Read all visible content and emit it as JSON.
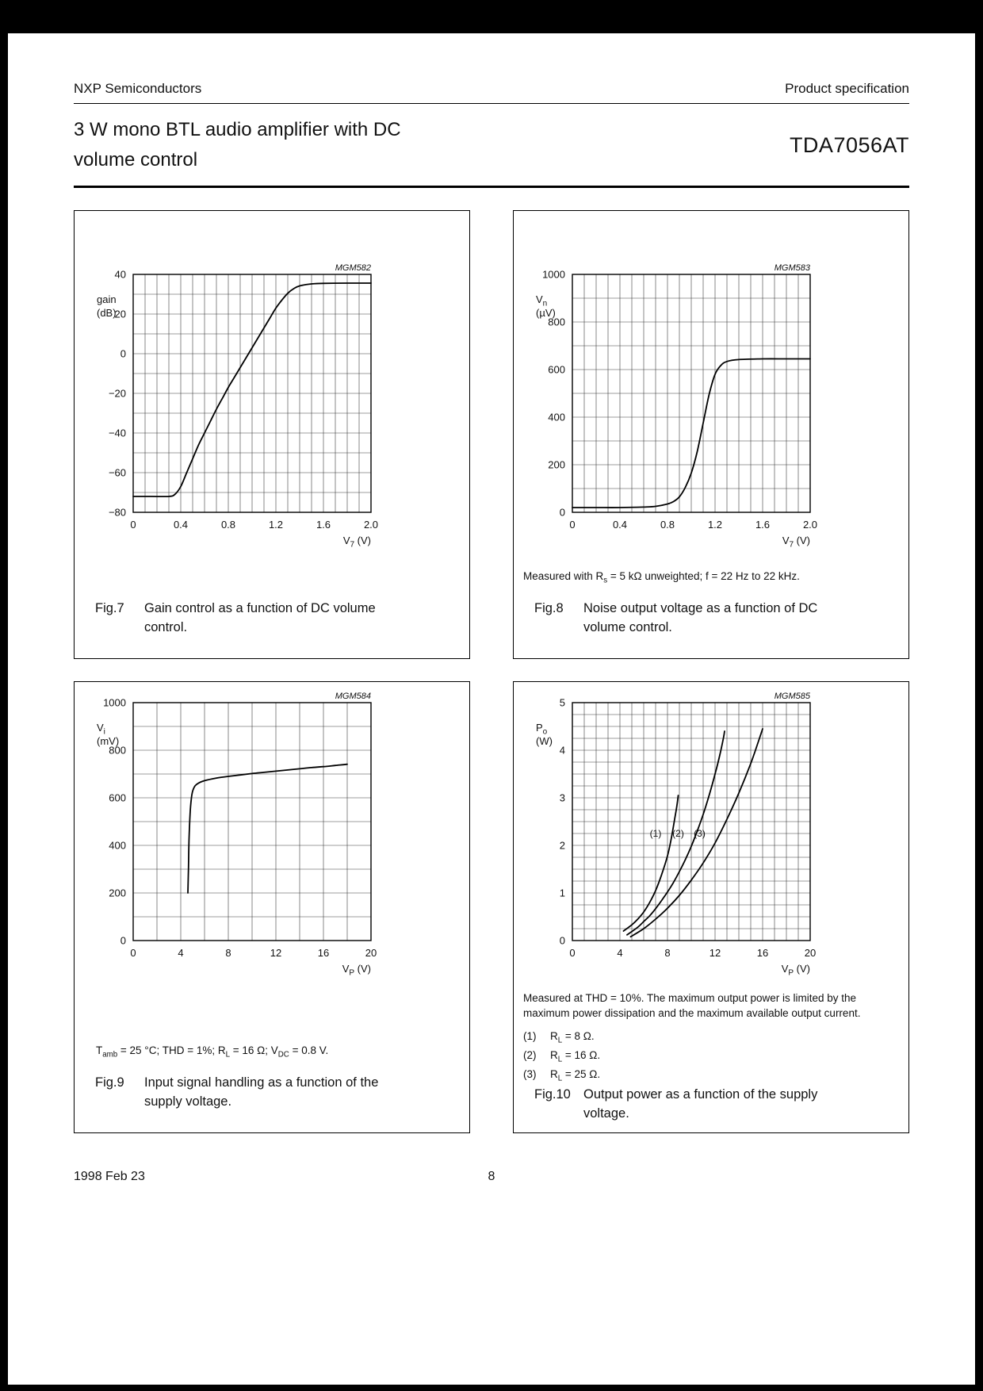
{
  "page": {
    "header_left": "NXP Semiconductors",
    "header_right": "Product specification",
    "title_line1": "3 W mono BTL audio amplifier with DC",
    "title_line2": "volume control",
    "part_number": "TDA7056AT",
    "footer_date": "1998 Feb 23",
    "footer_page_number": "8"
  },
  "figures": [
    {
      "label": "Fig.7",
      "caption": "Gain control as a function of DC volume control."
    },
    {
      "label": "Fig.8",
      "caption": "Noise output voltage as a function of DC volume control.",
      "note": [
        [
          "t",
          "Measured with R"
        ],
        [
          "sub",
          "s"
        ],
        [
          "t",
          " = 5 kΩ unweighted; f = 22 Hz to 22 kHz."
        ]
      ]
    },
    {
      "label": "Fig.9",
      "caption": "Input signal handling as a function of the supply voltage.",
      "note": [
        [
          "t",
          "T"
        ],
        [
          "sub",
          "amb"
        ],
        [
          "t",
          " = 25 °C; THD = 1%; R"
        ],
        [
          "sub",
          "L"
        ],
        [
          "t",
          " = 16 Ω; V"
        ],
        [
          "sub",
          "DC"
        ],
        [
          "t",
          " = 0.8 V."
        ]
      ]
    },
    {
      "label": "Fig.10",
      "caption": "Output power as a function of the supply voltage.",
      "note": [
        [
          "t",
          "Measured at THD = 10%. The maximum output power is limited by the maximum power dissipation and the maximum available output current."
        ]
      ],
      "legend": [
        {
          "num": "(1)",
          "text": [
            [
              "t",
              "R"
            ],
            [
              "sub",
              "L"
            ],
            [
              "t",
              " = 8 Ω."
            ]
          ]
        },
        {
          "num": "(2)",
          "text": [
            [
              "t",
              "R"
            ],
            [
              "sub",
              "L"
            ],
            [
              "t",
              " = 16 Ω."
            ]
          ]
        },
        {
          "num": "(3)",
          "text": [
            [
              "t",
              "R"
            ],
            [
              "sub",
              "L"
            ],
            [
              "t",
              " = 25 Ω."
            ]
          ]
        }
      ]
    }
  ],
  "chart_data": [
    {
      "type": "line",
      "id": "MGM582",
      "xlim": [
        0,
        2.0
      ],
      "xminor": 0.1,
      "xticks": [
        0,
        0.4,
        0.8,
        1.2,
        1.6,
        2.0
      ],
      "xtick_labels": [
        "0",
        "0.4",
        "0.8",
        "1.2",
        "1.6",
        "2.0"
      ],
      "ylim": [
        -80,
        40
      ],
      "yminor": 10,
      "yticks": [
        -80,
        -60,
        -40,
        -20,
        0,
        20,
        40
      ],
      "ytick_labels": [
        "−80",
        "−60",
        "−40",
        "−20",
        "0",
        "20",
        "40"
      ],
      "ylabel_lines": [
        [
          [
            "t",
            "gain"
          ]
        ],
        [
          [
            "t",
            "(dB)"
          ]
        ]
      ],
      "xlabel": [
        [
          "t",
          "V"
        ],
        [
          "sub",
          "7"
        ],
        [
          "t",
          " (V)"
        ]
      ],
      "grid": true,
      "legend_position": "none",
      "series": [
        {
          "name": "gain control",
          "points": [
            [
              0,
              -72
            ],
            [
              0.15,
              -72
            ],
            [
              0.3,
              -72
            ],
            [
              0.35,
              -71
            ],
            [
              0.4,
              -67
            ],
            [
              0.45,
              -60
            ],
            [
              0.5,
              -53
            ],
            [
              0.55,
              -46
            ],
            [
              0.6,
              -40
            ],
            [
              0.65,
              -34
            ],
            [
              0.7,
              -28
            ],
            [
              0.75,
              -22.5
            ],
            [
              0.8,
              -17
            ],
            [
              0.85,
              -12
            ],
            [
              0.9,
              -7
            ],
            [
              0.95,
              -2
            ],
            [
              1.0,
              3
            ],
            [
              1.05,
              8
            ],
            [
              1.1,
              13
            ],
            [
              1.15,
              18
            ],
            [
              1.2,
              23
            ],
            [
              1.25,
              27
            ],
            [
              1.3,
              30.5
            ],
            [
              1.35,
              32.8
            ],
            [
              1.4,
              34.2
            ],
            [
              1.5,
              35.2
            ],
            [
              1.6,
              35.5
            ],
            [
              1.8,
              35.6
            ],
            [
              2.0,
              35.6
            ]
          ]
        }
      ]
    },
    {
      "type": "line",
      "id": "MGM583",
      "xlim": [
        0,
        2.0
      ],
      "xminor": 0.1,
      "xticks": [
        0,
        0.4,
        0.8,
        1.2,
        1.6,
        2.0
      ],
      "xtick_labels": [
        "0",
        "0.4",
        "0.8",
        "1.2",
        "1.6",
        "2.0"
      ],
      "ylim": [
        0,
        1000
      ],
      "yminor": 100,
      "yticks": [
        0,
        200,
        400,
        600,
        800,
        1000
      ],
      "ytick_labels": [
        "0",
        "200",
        "400",
        "600",
        "800",
        "1000"
      ],
      "ylabel_lines": [
        [
          [
            "t",
            "V"
          ],
          [
            "sub",
            "n"
          ]
        ],
        [
          [
            "t",
            "(µV)"
          ]
        ]
      ],
      "xlabel": [
        [
          "t",
          "V"
        ],
        [
          "sub",
          "7"
        ],
        [
          "t",
          " (V)"
        ]
      ],
      "grid": true,
      "legend_position": "none",
      "series": [
        {
          "name": "noise output voltage",
          "points": [
            [
              0,
              20
            ],
            [
              0.2,
              20
            ],
            [
              0.4,
              20
            ],
            [
              0.6,
              22
            ],
            [
              0.7,
              25
            ],
            [
              0.8,
              35
            ],
            [
              0.85,
              45
            ],
            [
              0.9,
              65
            ],
            [
              0.95,
              105
            ],
            [
              1.0,
              165
            ],
            [
              1.05,
              255
            ],
            [
              1.1,
              375
            ],
            [
              1.15,
              495
            ],
            [
              1.2,
              580
            ],
            [
              1.25,
              618
            ],
            [
              1.3,
              634
            ],
            [
              1.4,
              642
            ],
            [
              1.6,
              645
            ],
            [
              1.8,
              645
            ],
            [
              2.0,
              645
            ]
          ]
        }
      ]
    },
    {
      "type": "line",
      "id": "MGM584",
      "xlim": [
        0,
        20
      ],
      "xminor": 2,
      "xticks": [
        0,
        4,
        8,
        12,
        16,
        20
      ],
      "xtick_labels": [
        "0",
        "4",
        "8",
        "12",
        "16",
        "20"
      ],
      "ylim": [
        0,
        1000
      ],
      "yminor": 100,
      "yticks": [
        0,
        200,
        400,
        600,
        800,
        1000
      ],
      "ytick_labels": [
        "0",
        "200",
        "400",
        "600",
        "800",
        "1000"
      ],
      "ylabel_lines": [
        [
          [
            "t",
            "V"
          ],
          [
            "sub",
            "i"
          ]
        ],
        [
          [
            "t",
            "(mV)"
          ]
        ]
      ],
      "xlabel": [
        [
          "t",
          "V"
        ],
        [
          "sub",
          "P"
        ],
        [
          "t",
          " (V)"
        ]
      ],
      "grid": true,
      "legend_position": "none",
      "series": [
        {
          "name": "input signal handling",
          "points": [
            [
              4.6,
              200
            ],
            [
              4.65,
              310
            ],
            [
              4.7,
              430
            ],
            [
              4.8,
              545
            ],
            [
              4.9,
              600
            ],
            [
              5.0,
              628
            ],
            [
              5.2,
              650
            ],
            [
              5.5,
              662
            ],
            [
              6,
              672
            ],
            [
              7,
              683
            ],
            [
              8,
              690
            ],
            [
              9,
              696
            ],
            [
              10,
              702
            ],
            [
              11,
              707
            ],
            [
              12,
              712
            ],
            [
              13,
              717
            ],
            [
              14,
              722
            ],
            [
              15,
              727
            ],
            [
              16,
              731
            ],
            [
              17,
              736
            ],
            [
              18,
              741
            ]
          ]
        }
      ]
    },
    {
      "type": "line",
      "id": "MGM585",
      "xlim": [
        0,
        20
      ],
      "xminor": 1,
      "xticks": [
        0,
        4,
        8,
        12,
        16,
        20
      ],
      "xtick_labels": [
        "0",
        "4",
        "8",
        "12",
        "16",
        "20"
      ],
      "ylim": [
        0,
        5
      ],
      "yminor": 0.25,
      "yticks": [
        0,
        1,
        2,
        3,
        4,
        5
      ],
      "ytick_labels": [
        "0",
        "1",
        "2",
        "3",
        "4",
        "5"
      ],
      "ylabel_lines": [
        [
          [
            "t",
            "P"
          ],
          [
            "sub",
            "o"
          ]
        ],
        [
          [
            "t",
            "(W)"
          ]
        ]
      ],
      "xlabel": [
        [
          "t",
          "V"
        ],
        [
          "sub",
          "P"
        ],
        [
          "t",
          " (V)"
        ]
      ],
      "grid": true,
      "legend_position": "inline-annotations",
      "series": [
        {
          "name": "(1) RL = 8 Ω",
          "points": [
            [
              4.3,
              0.2
            ],
            [
              5,
              0.33
            ],
            [
              5.5,
              0.45
            ],
            [
              6,
              0.6
            ],
            [
              6.5,
              0.8
            ],
            [
              7,
              1.05
            ],
            [
              7.5,
              1.38
            ],
            [
              8,
              1.78
            ],
            [
              8.3,
              2.12
            ],
            [
              8.6,
              2.55
            ],
            [
              8.8,
              2.85
            ],
            [
              8.9,
              3.05
            ]
          ]
        },
        {
          "name": "(2) RL = 16 Ω",
          "points": [
            [
              4.6,
              0.12
            ],
            [
              5.5,
              0.28
            ],
            [
              6,
              0.4
            ],
            [
              6.5,
              0.52
            ],
            [
              7,
              0.67
            ],
            [
              7.5,
              0.84
            ],
            [
              8,
              1.02
            ],
            [
              8.5,
              1.22
            ],
            [
              9,
              1.45
            ],
            [
              9.5,
              1.7
            ],
            [
              10,
              1.98
            ],
            [
              10.5,
              2.3
            ],
            [
              11,
              2.65
            ],
            [
              11.5,
              3.05
            ],
            [
              12,
              3.5
            ],
            [
              12.4,
              3.9
            ],
            [
              12.7,
              4.25
            ],
            [
              12.8,
              4.4
            ]
          ]
        },
        {
          "name": "(3) RL = 25 Ω",
          "points": [
            [
              4.9,
              0.08
            ],
            [
              6,
              0.25
            ],
            [
              7,
              0.45
            ],
            [
              8,
              0.68
            ],
            [
              9,
              0.95
            ],
            [
              10,
              1.27
            ],
            [
              11,
              1.63
            ],
            [
              12,
              2.05
            ],
            [
              13,
              2.55
            ],
            [
              14,
              3.1
            ],
            [
              15,
              3.72
            ],
            [
              15.6,
              4.15
            ],
            [
              16,
              4.45
            ]
          ]
        }
      ],
      "annotations": [
        {
          "x": 7.0,
          "y": 2.25,
          "text": "(1)"
        },
        {
          "x": 8.9,
          "y": 2.25,
          "text": "(2)"
        },
        {
          "x": 10.7,
          "y": 2.25,
          "text": "(3)"
        }
      ]
    }
  ]
}
